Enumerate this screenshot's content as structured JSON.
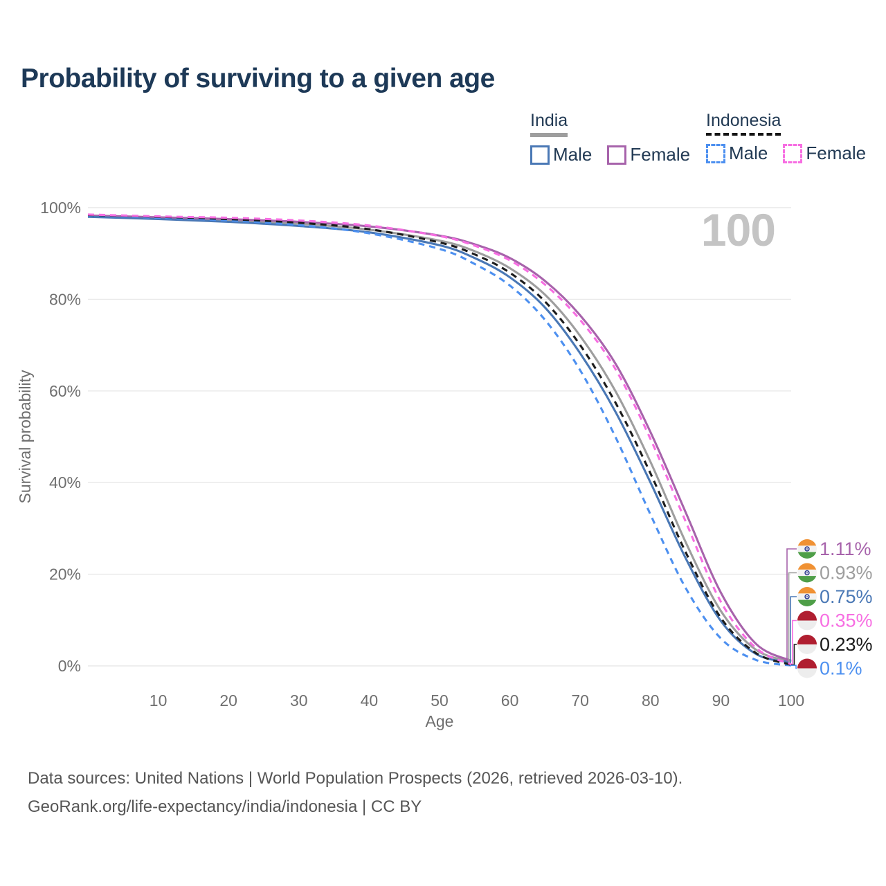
{
  "title": "Probability of surviving to a given age",
  "watermark": "100",
  "legend": {
    "groups": [
      {
        "label": "India",
        "line_style": "solid",
        "underline_color": "#9e9e9e",
        "items": [
          {
            "label": "Male",
            "color": "#4a78b5",
            "dash": false
          },
          {
            "label": "Female",
            "color": "#a763ab",
            "dash": false
          }
        ]
      },
      {
        "label": "Indonesia",
        "line_style": "dashed",
        "underline_color": "#151515",
        "items": [
          {
            "label": "Male",
            "color": "#4d90f0",
            "dash": true
          },
          {
            "label": "Female",
            "color": "#f76ee2",
            "dash": true
          }
        ]
      }
    ]
  },
  "chart_data": {
    "type": "line",
    "title": "Probability of surviving to a given age",
    "xlabel": "Age",
    "ylabel": "Survival probability",
    "xlim": [
      0,
      100
    ],
    "ylim": [
      0,
      100
    ],
    "grid": "horizontal-only",
    "legend_position": "top-right",
    "xticks": [
      10,
      20,
      30,
      40,
      50,
      60,
      70,
      80,
      90,
      100
    ],
    "yticks": [
      0,
      20,
      40,
      60,
      80,
      100
    ],
    "ytick_labels": [
      "0%",
      "20%",
      "40%",
      "60%",
      "80%",
      "100%"
    ],
    "x": [
      0,
      10,
      20,
      30,
      40,
      50,
      55,
      60,
      65,
      70,
      75,
      80,
      85,
      90,
      95,
      100
    ],
    "series": [
      {
        "id": "india-female",
        "country": "India",
        "flag": "in",
        "sex": "Female",
        "color": "#a763ab",
        "dash": false,
        "end_label": "1.11%",
        "values": [
          98.3,
          97.9,
          97.5,
          96.9,
          95.9,
          93.9,
          92.0,
          89.0,
          84.0,
          76.5,
          66.0,
          51.0,
          33.5,
          16.0,
          4.8,
          1.11
        ]
      },
      {
        "id": "india-total",
        "country": "India",
        "flag": "in",
        "sex": "India",
        "color": "#9e9e9e",
        "dash": false,
        "end_label": "0.93%",
        "values": [
          98.2,
          97.7,
          97.2,
          96.5,
          95.2,
          92.8,
          90.5,
          86.8,
          81.0,
          72.0,
          60.0,
          44.5,
          27.0,
          12.0,
          3.5,
          0.93
        ]
      },
      {
        "id": "india-male",
        "country": "India",
        "flag": "in",
        "sex": "Male",
        "color": "#4a78b5",
        "dash": false,
        "end_label": "0.75%",
        "values": [
          98.0,
          97.5,
          96.9,
          96.0,
          94.6,
          91.8,
          89.0,
          84.8,
          78.2,
          68.2,
          55.5,
          40.0,
          23.5,
          9.8,
          2.6,
          0.75
        ]
      },
      {
        "id": "indonesia-female",
        "country": "Indonesia",
        "flag": "id",
        "sex": "Female",
        "color": "#f76ee2",
        "dash": true,
        "end_label": "0.35%",
        "values": [
          98.5,
          98.1,
          97.8,
          97.2,
          96.1,
          93.8,
          91.7,
          88.5,
          83.2,
          75.5,
          64.8,
          49.5,
          31.5,
          14.0,
          3.9,
          0.35
        ]
      },
      {
        "id": "indonesia-total",
        "country": "Indonesia",
        "flag": "id",
        "sex": "Indonesia",
        "color": "#1c1c1c",
        "dash": true,
        "end_label": "0.23%",
        "values": [
          98.4,
          98.0,
          97.5,
          96.7,
          95.3,
          92.4,
          89.8,
          85.8,
          79.5,
          70.0,
          57.5,
          42.0,
          24.8,
          10.5,
          2.8,
          0.23
        ]
      },
      {
        "id": "indonesia-male",
        "country": "Indonesia",
        "flag": "id",
        "sex": "Male",
        "color": "#4d90f0",
        "dash": true,
        "end_label": "0.1%",
        "values": [
          98.3,
          97.8,
          97.2,
          96.2,
          94.4,
          91.0,
          87.7,
          83.0,
          75.5,
          64.5,
          50.0,
          33.0,
          17.0,
          6.0,
          1.3,
          0.1
        ]
      }
    ],
    "flag_colors": {
      "india_saffron": "#f09133",
      "india_white": "#f2f2f2",
      "india_green": "#4e9e48",
      "india_chakra": "#2b3990",
      "indonesia_red": "#b01e30",
      "indonesia_white": "#ededed"
    }
  },
  "footer": {
    "line1": "Data sources: United Nations | World Population Prospects (2026, retrieved 2026-03-10).",
    "line2": "GeoRank.org/life-expectancy/india/indonesia | CC BY"
  }
}
